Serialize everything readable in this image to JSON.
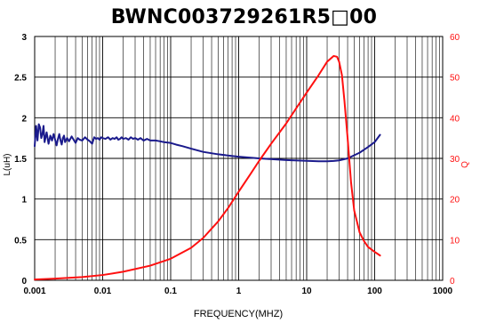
{
  "chart_data": {
    "type": "line",
    "title": "BWNC003729261R5□00",
    "xlabel": "FREQUENCY(MHZ)",
    "ylabel": "L(uH)",
    "y2label": "Q",
    "xscale": "log",
    "xlim": [
      0.001,
      1000
    ],
    "ylim": [
      0,
      3
    ],
    "y2lim": [
      0,
      60
    ],
    "grid": true,
    "x_tick_labels": [
      "0.001",
      "0.01",
      "0.1",
      "1",
      "10",
      "100",
      "1000"
    ],
    "y_tick_labels": [
      "0",
      "0.5",
      "1",
      "1.5",
      "2",
      "2.5",
      "3"
    ],
    "y2_tick_labels": [
      "0",
      "10",
      "20",
      "30",
      "40",
      "50",
      "60"
    ],
    "colors": {
      "inductance": "#1a1a8c",
      "q": "#ff1010",
      "grid": "#000000"
    },
    "series": [
      {
        "axis": "left",
        "color": "#1a1a8c",
        "x": [
          0.001,
          0.00105,
          0.0011,
          0.00115,
          0.0012,
          0.00125,
          0.0013,
          0.00135,
          0.0014,
          0.0015,
          0.0016,
          0.0017,
          0.0018,
          0.0019,
          0.002,
          0.0021,
          0.0022,
          0.0023,
          0.0024,
          0.0025,
          0.0026,
          0.0027,
          0.0028,
          0.003,
          0.0032,
          0.0035,
          0.0038,
          0.004,
          0.0043,
          0.0046,
          0.005,
          0.0055,
          0.006,
          0.0065,
          0.007,
          0.0075,
          0.008,
          0.0085,
          0.009,
          0.0095,
          0.01,
          0.011,
          0.012,
          0.013,
          0.014,
          0.015,
          0.016,
          0.017,
          0.018,
          0.019,
          0.02,
          0.022,
          0.024,
          0.026,
          0.028,
          0.03,
          0.033,
          0.036,
          0.04,
          0.045,
          0.05,
          0.06,
          0.07,
          0.08,
          0.1,
          0.12,
          0.15,
          0.2,
          0.3,
          0.5,
          1,
          2,
          5,
          10,
          15,
          20,
          25,
          30,
          40,
          60,
          80,
          100,
          120
        ],
        "values": [
          1.65,
          1.9,
          1.72,
          1.92,
          1.88,
          1.75,
          1.8,
          1.9,
          1.7,
          1.82,
          1.68,
          1.78,
          1.72,
          1.8,
          1.73,
          1.66,
          1.74,
          1.8,
          1.72,
          1.67,
          1.75,
          1.78,
          1.7,
          1.75,
          1.71,
          1.77,
          1.72,
          1.69,
          1.75,
          1.73,
          1.72,
          1.76,
          1.73,
          1.71,
          1.68,
          1.76,
          1.74,
          1.75,
          1.73,
          1.76,
          1.75,
          1.74,
          1.76,
          1.73,
          1.75,
          1.74,
          1.76,
          1.73,
          1.74,
          1.76,
          1.74,
          1.75,
          1.73,
          1.76,
          1.74,
          1.75,
          1.73,
          1.75,
          1.72,
          1.74,
          1.72,
          1.72,
          1.71,
          1.7,
          1.69,
          1.67,
          1.65,
          1.62,
          1.58,
          1.55,
          1.52,
          1.5,
          1.48,
          1.47,
          1.465,
          1.465,
          1.468,
          1.475,
          1.5,
          1.57,
          1.64,
          1.7,
          1.79
        ]
      },
      {
        "axis": "right",
        "color": "#ff1010",
        "x": [
          0.001,
          0.002,
          0.005,
          0.01,
          0.02,
          0.05,
          0.1,
          0.2,
          0.3,
          0.5,
          0.7,
          1,
          1.5,
          2,
          3,
          5,
          7,
          10,
          15,
          20,
          25,
          28,
          30,
          33,
          36,
          40,
          45,
          50,
          60,
          70,
          80,
          100,
          120
        ],
        "values": [
          0.2,
          0.4,
          0.8,
          1.3,
          2.1,
          3.6,
          5.3,
          8,
          10.4,
          14.5,
          17.8,
          21.8,
          26.2,
          29.4,
          33.6,
          38.6,
          42.3,
          46.2,
          50.5,
          53.8,
          55.2,
          55.0,
          53.8,
          50.5,
          44,
          35,
          24,
          17.2,
          11.8,
          9.6,
          8.2,
          7.0,
          6.1
        ]
      }
    ]
  }
}
